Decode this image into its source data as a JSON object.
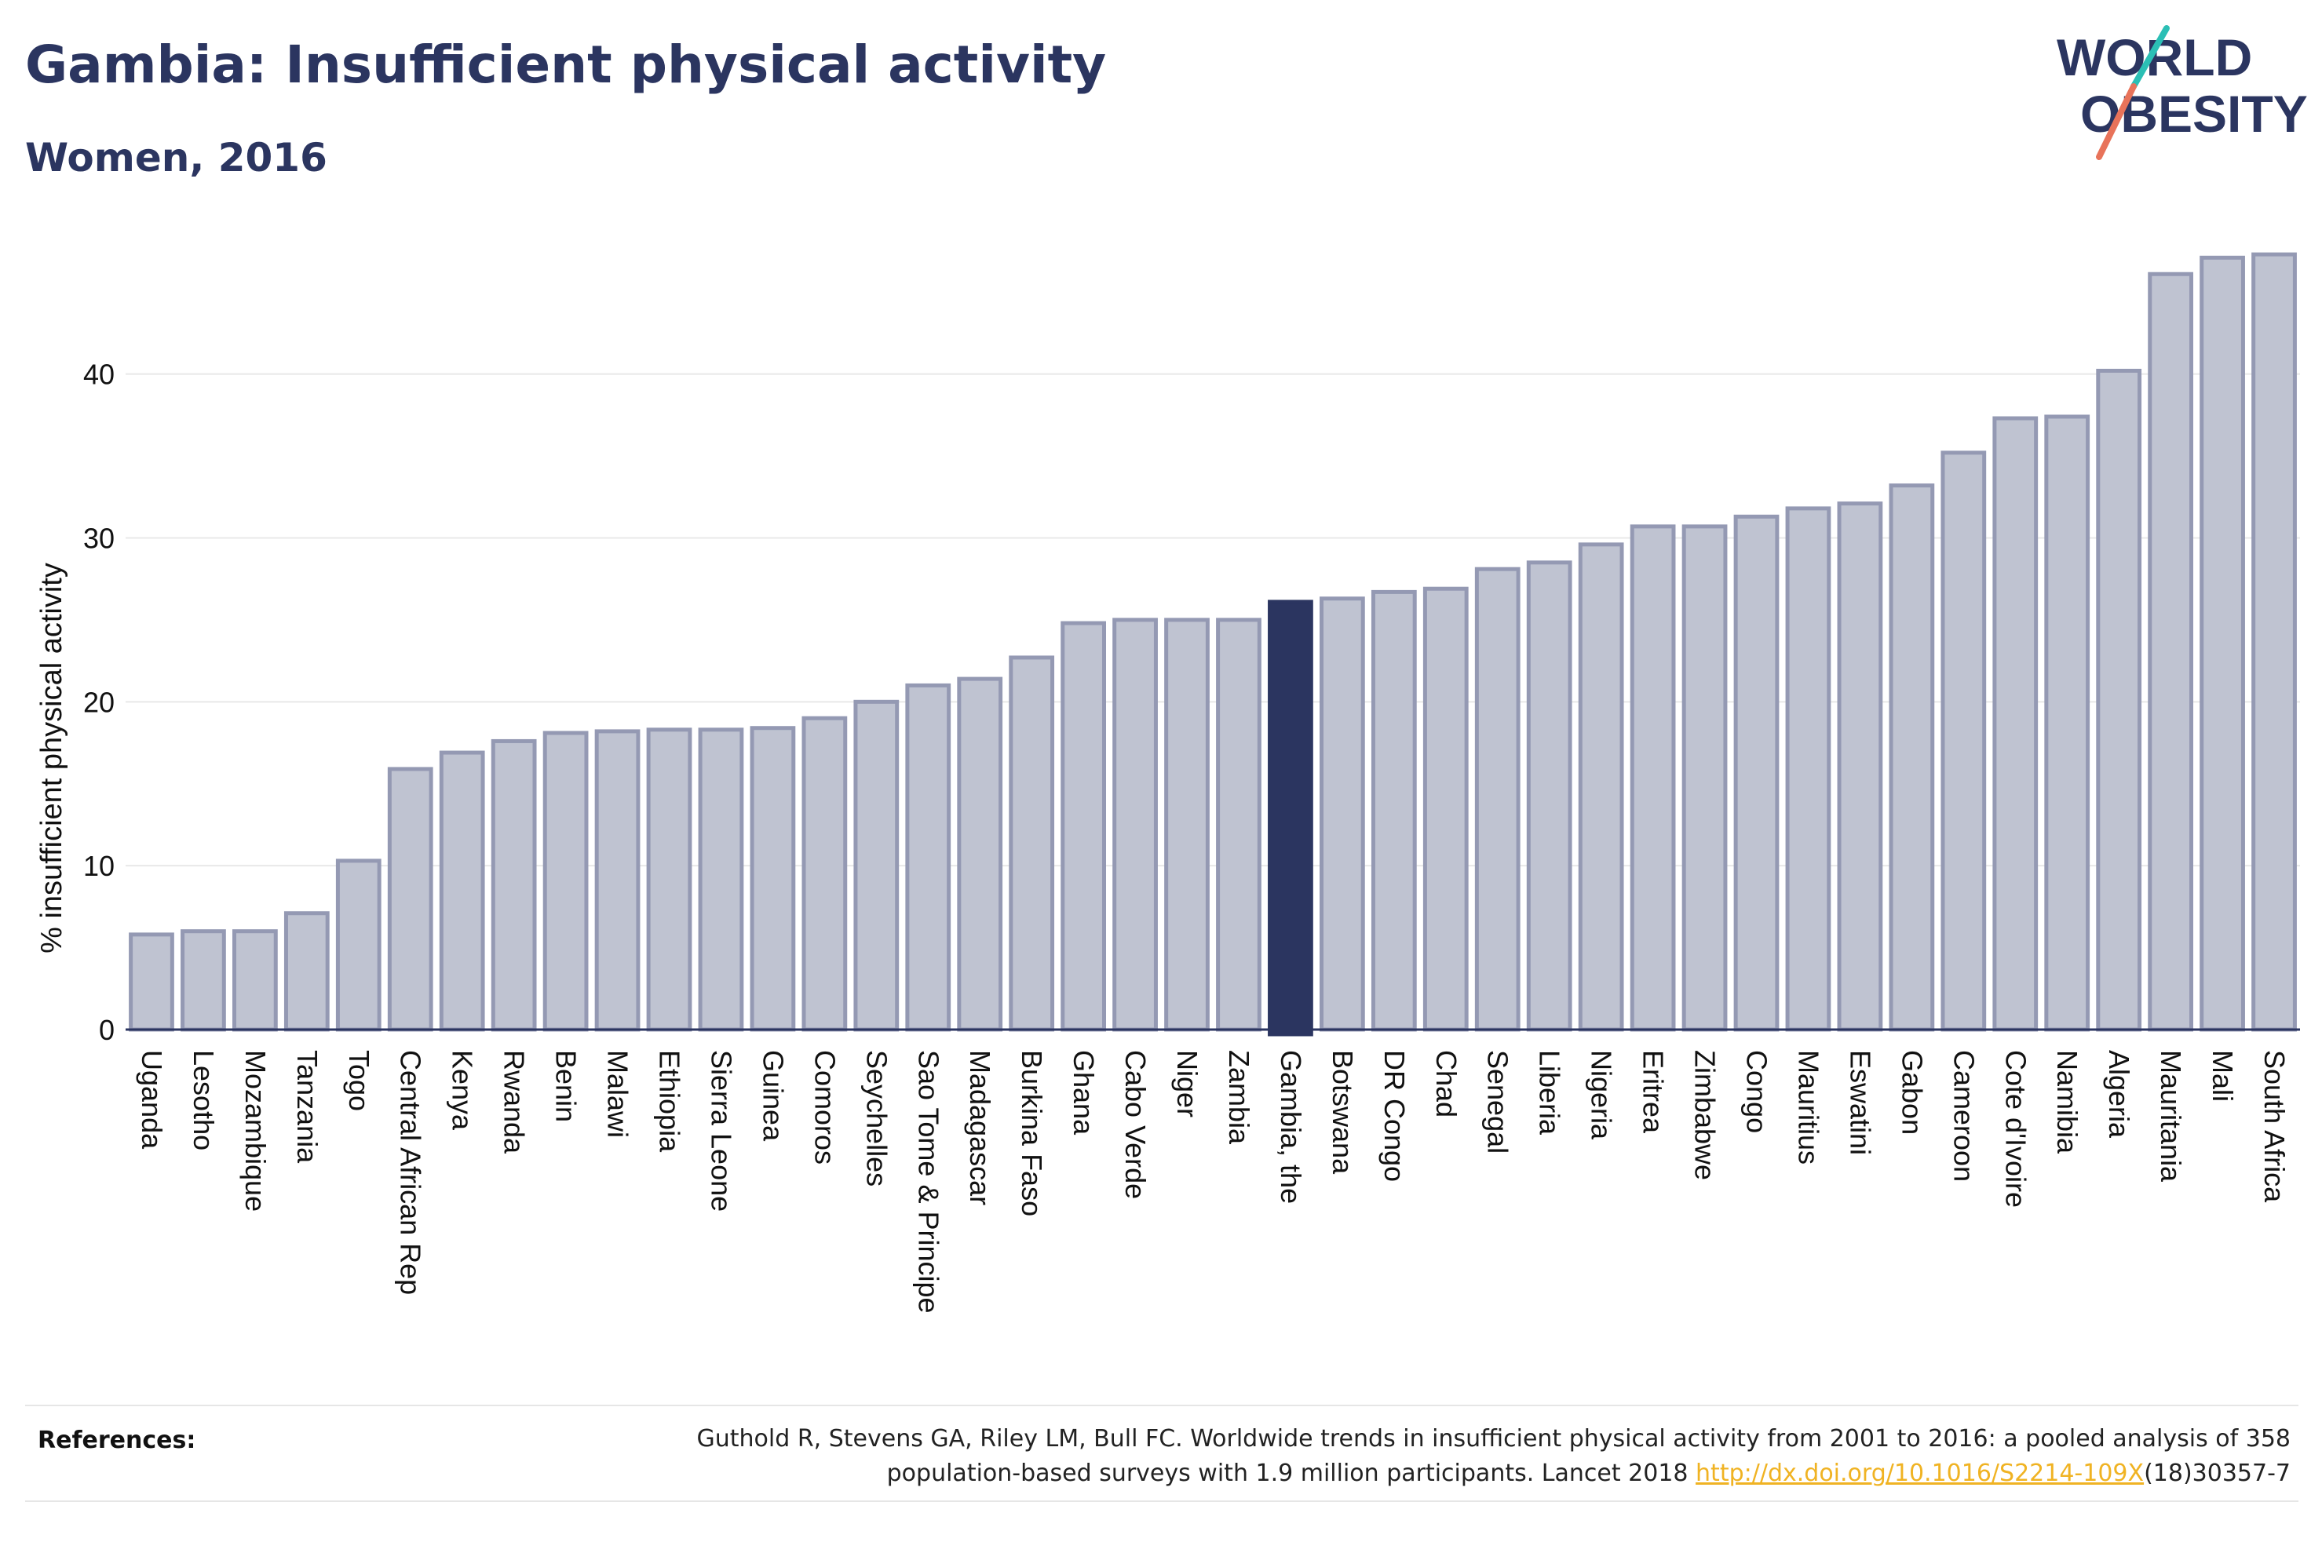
{
  "header": {
    "title": "Gambia: Insufficient physical activity",
    "subtitle": "Women, 2016"
  },
  "logo": {
    "line1": "WORLD",
    "line2": "OBESITY",
    "colors": {
      "text": "#2b3560",
      "slash_top": "#2bbfb5",
      "slash_bottom": "#e8735a"
    }
  },
  "references": {
    "label": "References:",
    "text_line1": "Guthold R, Stevens GA, Riley LM, Bull FC. Worldwide trends in insufficient physical activity from 2001 to 2016: a pooled analysis of 358",
    "text_line2_prefix": "population-based surveys with 1.9 million participants. Lancet 2018 ",
    "link_text": "http://dx.doi.org/10.1016/S2214-109X",
    "text_line2_suffix": "(18)30357-7"
  },
  "chart_data": {
    "type": "bar",
    "ylabel": "% insufficient physical activity",
    "xlabel": "",
    "ylim": [
      0,
      47.5
    ],
    "yticks": [
      0,
      10,
      20,
      30,
      40
    ],
    "grid": true,
    "highlight": "Gambia, the",
    "colors": {
      "bar_fill": "#bfc3d1",
      "bar_stroke": "#9499b3",
      "highlight": "#2b3560",
      "grid": "#e8e8e8",
      "axis": "#2b3560"
    },
    "categories": [
      "Uganda",
      "Lesotho",
      "Mozambique",
      "Tanzania",
      "Togo",
      "Central African Rep",
      "Kenya",
      "Rwanda",
      "Benin",
      "Malawi",
      "Ethiopia",
      "Sierra Leone",
      "Guinea",
      "Comoros",
      "Seychelles",
      "Sao Tome & Principe",
      "Madagascar",
      "Burkina Faso",
      "Ghana",
      "Cabo Verde",
      "Niger",
      "Zambia",
      "Gambia, the",
      "Botswana",
      "DR Congo",
      "Chad",
      "Senegal",
      "Liberia",
      "Nigeria",
      "Eritrea",
      "Zimbabwe",
      "Congo",
      "Mauritius",
      "Eswatini",
      "Gabon",
      "Cameroon",
      "Cote d'Ivoire",
      "Namibia",
      "Algeria",
      "Mauritania",
      "Mali",
      "South Africa"
    ],
    "values": [
      5.8,
      6.0,
      6.0,
      7.1,
      10.3,
      15.9,
      16.9,
      17.6,
      18.1,
      18.2,
      18.3,
      18.3,
      18.4,
      19.0,
      20.0,
      21.0,
      21.4,
      22.7,
      24.8,
      25.0,
      25.0,
      25.0,
      26.1,
      26.3,
      26.7,
      26.9,
      28.1,
      28.5,
      29.6,
      30.7,
      30.7,
      31.3,
      31.8,
      32.1,
      33.2,
      35.2,
      37.3,
      37.4,
      40.2,
      46.1,
      47.1,
      47.3
    ]
  }
}
